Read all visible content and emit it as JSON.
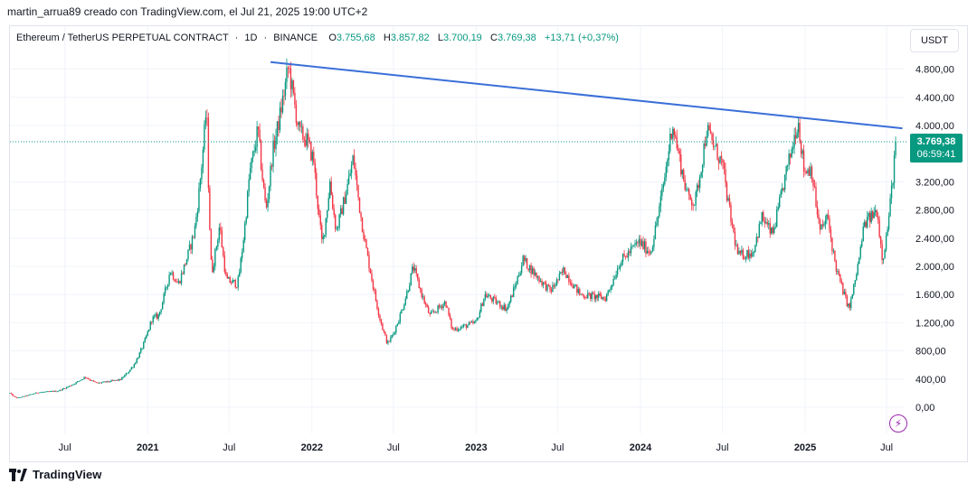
{
  "header": {
    "attribution": "martin_arrua89 creado con TradingView.com, el Jul 21, 2025 19:00 UTC+2"
  },
  "legend": {
    "symbol": "Ethereum / TetherUS PERPETUAL CONTRACT",
    "interval": "1D",
    "exchange": "BINANCE",
    "open_label": "O",
    "open": "3.755,68",
    "high_label": "H",
    "high": "3.857,82",
    "low_label": "L",
    "low": "3.700,19",
    "close_label": "C",
    "close": "3.769,38",
    "change": "+13,71 (+0,37%)"
  },
  "currency_button": "USDT",
  "price_badge": {
    "price": "3.769,38",
    "countdown": "06:59:41"
  },
  "footer": {
    "brand": "TradingView"
  },
  "colors": {
    "up": "#089981",
    "down": "#f23645",
    "trendline": "#3a6fd8",
    "accent": "#9c27b0"
  },
  "icons": {
    "alert": "lightning-bolt-icon",
    "logo": "tradingview-logo-icon"
  },
  "chart_data": {
    "type": "candlestick",
    "title": "",
    "xlabel": "",
    "ylabel": "",
    "ylim": [
      -100,
      5000
    ],
    "y_ticks": [
      {
        "value": 0,
        "label": "0,00"
      },
      {
        "value": 400,
        "label": "400,00"
      },
      {
        "value": 800,
        "label": "800,00"
      },
      {
        "value": 1200,
        "label": "1.200,00"
      },
      {
        "value": 1600,
        "label": "1.600,00"
      },
      {
        "value": 2000,
        "label": "2.000,00"
      },
      {
        "value": 2400,
        "label": "2.400,00"
      },
      {
        "value": 2800,
        "label": "2.800,00"
      },
      {
        "value": 3200,
        "label": "3.200,00"
      },
      {
        "value": 4000,
        "label": "4.000,00"
      },
      {
        "value": 4400,
        "label": "4.400,00"
      },
      {
        "value": 4800,
        "label": "4.800,00"
      }
    ],
    "xlim": [
      "2020-03-01",
      "2025-08-10"
    ],
    "x_ticks": [
      {
        "date": "2020-07-01",
        "label": "Jul",
        "bold": false
      },
      {
        "date": "2021-01-01",
        "label": "2021",
        "bold": true
      },
      {
        "date": "2021-07-01",
        "label": "Jul",
        "bold": false
      },
      {
        "date": "2022-01-01",
        "label": "2022",
        "bold": true
      },
      {
        "date": "2022-07-01",
        "label": "Jul",
        "bold": false
      },
      {
        "date": "2023-01-01",
        "label": "2023",
        "bold": true
      },
      {
        "date": "2023-07-01",
        "label": "Jul",
        "bold": false
      },
      {
        "date": "2024-01-01",
        "label": "2024",
        "bold": true
      },
      {
        "date": "2024-07-01",
        "label": "Jul",
        "bold": false
      },
      {
        "date": "2025-01-01",
        "label": "2025",
        "bold": true
      },
      {
        "date": "2025-07-01",
        "label": "Jul",
        "bold": false
      }
    ],
    "price_path": [
      [
        "2020-03-01",
        200
      ],
      [
        "2020-03-15",
        130
      ],
      [
        "2020-05-01",
        210
      ],
      [
        "2020-06-15",
        230
      ],
      [
        "2020-08-15",
        430
      ],
      [
        "2020-09-10",
        340
      ],
      [
        "2020-11-01",
        390
      ],
      [
        "2020-12-01",
        600
      ],
      [
        "2021-01-10",
        1250
      ],
      [
        "2021-01-25",
        1300
      ],
      [
        "2021-02-20",
        1950
      ],
      [
        "2021-03-10",
        1750
      ],
      [
        "2021-04-15",
        2500
      ],
      [
        "2021-05-12",
        4300
      ],
      [
        "2021-05-23",
        1900
      ],
      [
        "2021-06-10",
        2600
      ],
      [
        "2021-06-25",
        1800
      ],
      [
        "2021-07-20",
        1750
      ],
      [
        "2021-08-15",
        3300
      ],
      [
        "2021-09-03",
        3950
      ],
      [
        "2021-09-21",
        2800
      ],
      [
        "2021-10-05",
        3600
      ],
      [
        "2021-11-10",
        4850
      ],
      [
        "2021-12-04",
        3900
      ],
      [
        "2021-12-20",
        3800
      ],
      [
        "2022-01-05",
        3500
      ],
      [
        "2022-01-24",
        2300
      ],
      [
        "2022-02-10",
        3200
      ],
      [
        "2022-02-24",
        2500
      ],
      [
        "2022-04-03",
        3550
      ],
      [
        "2022-05-12",
        1900
      ],
      [
        "2022-06-18",
        900
      ],
      [
        "2022-07-01",
        1050
      ],
      [
        "2022-08-14",
        2000
      ],
      [
        "2022-09-20",
        1300
      ],
      [
        "2022-10-25",
        1500
      ],
      [
        "2022-11-09",
        1100
      ],
      [
        "2022-12-31",
        1200
      ],
      [
        "2023-01-20",
        1600
      ],
      [
        "2023-03-10",
        1400
      ],
      [
        "2023-04-15",
        2100
      ],
      [
        "2023-06-15",
        1650
      ],
      [
        "2023-07-15",
        1950
      ],
      [
        "2023-08-20",
        1600
      ],
      [
        "2023-10-15",
        1550
      ],
      [
        "2023-11-15",
        2050
      ],
      [
        "2023-12-28",
        2350
      ],
      [
        "2024-01-23",
        2200
      ],
      [
        "2024-03-12",
        4050
      ],
      [
        "2024-04-15",
        3000
      ],
      [
        "2024-05-01",
        2900
      ],
      [
        "2024-05-27",
        3950
      ],
      [
        "2024-07-01",
        3450
      ],
      [
        "2024-08-05",
        2150
      ],
      [
        "2024-09-06",
        2200
      ],
      [
        "2024-09-27",
        2700
      ],
      [
        "2024-10-20",
        2450
      ],
      [
        "2024-11-15",
        3200
      ],
      [
        "2024-12-16",
        4100
      ],
      [
        "2024-12-30",
        3350
      ],
      [
        "2025-01-15",
        3400
      ],
      [
        "2025-02-03",
        2500
      ],
      [
        "2025-02-20",
        2700
      ],
      [
        "2025-03-10",
        2000
      ],
      [
        "2025-04-09",
        1400
      ],
      [
        "2025-04-22",
        1800
      ],
      [
        "2025-05-12",
        2600
      ],
      [
        "2025-06-10",
        2800
      ],
      [
        "2025-06-22",
        2100
      ],
      [
        "2025-07-01",
        2450
      ],
      [
        "2025-07-10",
        2950
      ],
      [
        "2025-07-21",
        3769.38
      ]
    ],
    "trendline": {
      "start": [
        "2021-10-01",
        4900
      ],
      "end": [
        "2025-08-05",
        3960
      ]
    },
    "last_price": 3769.38
  }
}
